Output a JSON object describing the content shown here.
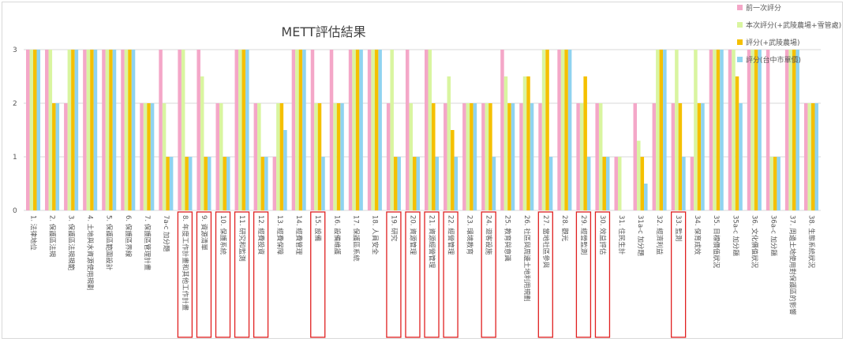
{
  "chart_data": {
    "type": "bar",
    "title": "METT評估結果",
    "ylim": [
      0,
      3
    ],
    "yticks": [
      "0",
      "1",
      "2",
      "3"
    ],
    "grid": true,
    "legend_position": "top-right",
    "categories": [
      "1. 法律地位",
      "2. 保護區法規",
      "3. 保護區法規規範",
      "4. 土地與水資源使用規劃",
      "5. 保護區範圍設計",
      "6. 保護區界線",
      "7. 保護區管理計畫",
      "7a-c 加分題",
      "8. 年度工作計畫和其他工作計畫",
      "9. 資源清單",
      "10. 保護系統",
      "11. 研究和監測",
      "12. 經費投資",
      "13. 經費保障",
      "14. 經費管理",
      "15. 設備",
      "16. 設備維護",
      "17. 保護區系統",
      "18. 人員安全",
      "19. 研究",
      "20. 資源管理",
      "21. 資源經營管理",
      "22. 經營管理",
      "23. 環境教育",
      "24. 遊客設施",
      "25. 教育與意識",
      "26. 社區與周邊土地利用規劃",
      "27. 當地社區參與",
      "28. 觀光",
      "29. 經營監測",
      "30. 效益評估",
      "31. 住民生計",
      "31a-c 加分題",
      "32. 經濟利益",
      "33. 監測",
      "34. 保育成效",
      "35. 目標價值狀況",
      "35a-c 加分題",
      "36. 文化價值狀況",
      "36a-c 加分題",
      "37. 周邊土地使用對保護區的影響",
      "38. 生態系統狀況"
    ],
    "highlighted": [
      "8. 年度工作計畫和其他工作計畫",
      "9. 資源清單",
      "10. 保護系統",
      "11. 研究和監測",
      "12. 經費投資",
      "15. 設備",
      "19. 研究",
      "20. 資源管理",
      "21. 資源經營管理",
      "22. 經營管理",
      "24. 遊客設施",
      "27. 當地社區參與",
      "29. 經營監測",
      "30. 效益評估",
      "33. 監測"
    ],
    "series": [
      {
        "name": "前一次評分",
        "color": "#f4a7c8",
        "values": [
          3,
          3,
          2,
          3,
          3,
          3,
          2,
          3,
          3,
          3,
          2,
          3,
          2,
          1,
          3,
          3,
          3,
          3,
          3,
          2,
          3,
          3,
          2,
          2,
          2,
          3,
          2,
          2,
          3,
          2,
          2,
          1,
          2,
          2,
          2,
          1,
          3,
          3,
          3,
          3,
          3,
          2
        ]
      },
      {
        "name": "本次評分(+武陵農場+雪管處)",
        "color": "#d9f5a0",
        "values": [
          3,
          3,
          3,
          3,
          3,
          3,
          2,
          2,
          3,
          2.5,
          2,
          3,
          2,
          2,
          3,
          2,
          2,
          3,
          3,
          3,
          2,
          3,
          2.5,
          2,
          2,
          2.5,
          2.5,
          3,
          3,
          2,
          2,
          1,
          1.3,
          3,
          3,
          3,
          3,
          3,
          3,
          1,
          3,
          2
        ]
      },
      {
        "name": "評分(+武陵農場)",
        "color": "#f5c000",
        "values": [
          3,
          2,
          3,
          3,
          3,
          3,
          2,
          1,
          1,
          1,
          1,
          3,
          1,
          2,
          3,
          2,
          2,
          3,
          3,
          1,
          1,
          2,
          1.5,
          2,
          2,
          2,
          2.5,
          3,
          3,
          2.5,
          1,
          0,
          1,
          3,
          2,
          2,
          3,
          2.5,
          3,
          1,
          3,
          2
        ]
      },
      {
        "name": "評分(台中市單價)",
        "color": "#8fd3f0",
        "values": [
          3,
          2,
          3,
          3,
          3,
          3,
          2,
          1,
          1,
          1,
          1,
          3,
          1,
          1.5,
          3,
          1,
          2,
          3,
          3,
          1,
          1,
          1,
          1,
          2,
          1,
          2,
          2,
          1,
          3,
          1,
          1,
          0,
          0.5,
          3,
          1,
          2,
          3,
          2,
          3,
          1,
          3,
          2
        ]
      }
    ]
  }
}
